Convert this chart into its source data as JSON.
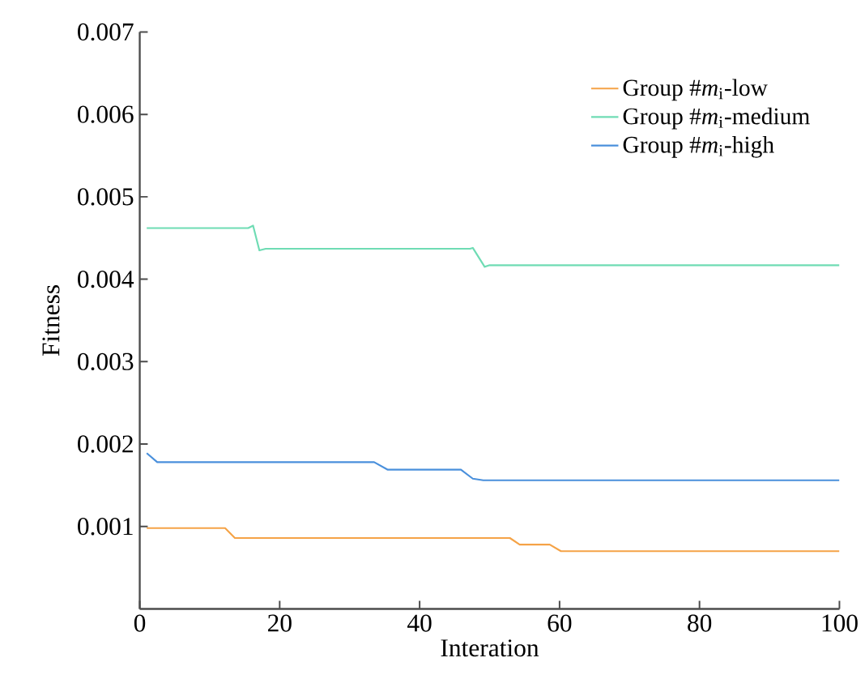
{
  "chart_data": {
    "type": "line",
    "xlabel": "Interation",
    "ylabel": "Fitness",
    "xlim": [
      0,
      100
    ],
    "ylim": [
      0,
      0.007
    ],
    "xticks": [
      0,
      20,
      40,
      60,
      80,
      100
    ],
    "yticks": [
      0.001,
      0.002,
      0.003,
      0.004,
      0.005,
      0.006,
      0.007
    ],
    "legend": "top right",
    "grid": false,
    "marker": "none",
    "line_style": "solid",
    "series": [
      {
        "name": "Group #*m*$_{i}$-low",
        "color": "#f5a347",
        "x": [
          1,
          12.2,
          13.6,
          52.9,
          54.3,
          58.6,
          60.2,
          100
        ],
        "values": [
          0.00098,
          0.00098,
          0.00086,
          0.00086,
          0.00078,
          0.00078,
          0.0007,
          0.0007
        ]
      },
      {
        "name": "Group #*m*$_{i}$-medium",
        "color": "#6fdcb4",
        "x": [
          1,
          15.5,
          16.2,
          17.1,
          18,
          47.2,
          47.6,
          49.3,
          50,
          100
        ],
        "values": [
          0.00462,
          0.00462,
          0.00465,
          0.00435,
          0.00437,
          0.00437,
          0.00438,
          0.00415,
          0.00417,
          0.00417
        ]
      },
      {
        "name": "Group #*m*$_{i}$-high",
        "color": "#4a90dc",
        "x": [
          1,
          2.5,
          3.5,
          33.5,
          35.4,
          45.5,
          45.9,
          47.6,
          49.1,
          100
        ],
        "values": [
          0.00189,
          0.00178,
          0.00178,
          0.00178,
          0.00169,
          0.00169,
          0.00169,
          0.00158,
          0.00156,
          0.00156
        ]
      }
    ]
  }
}
